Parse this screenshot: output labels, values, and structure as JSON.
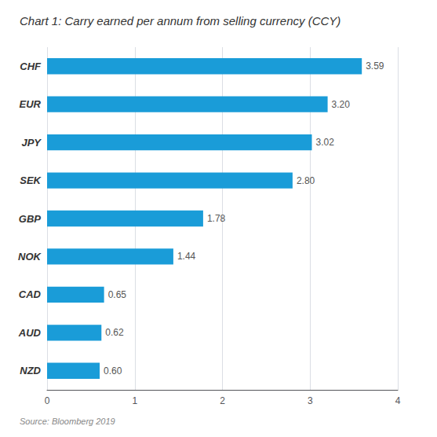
{
  "chart_data": {
    "type": "bar",
    "orientation": "horizontal",
    "title": "Chart 1: Carry earned per annum from selling currency (CCY)",
    "annotations": [
      "Source: Bloomberg 2019"
    ],
    "categories": [
      "NZD",
      "AUD",
      "CAD",
      "NOK",
      "GBP",
      "SEK",
      "JPY",
      "EUR",
      "CHF"
    ],
    "values": [
      0.6,
      0.62,
      0.65,
      1.44,
      1.78,
      2.8,
      3.02,
      3.2,
      3.59
    ],
    "value_labels": [
      "0.60",
      "0.62",
      "0.65",
      "1.44",
      "1.78",
      "2.80",
      "3.02",
      "3.20",
      "3.59"
    ],
    "data_labels": true,
    "color": "#1a9cd8",
    "xlim": [
      0,
      4
    ],
    "xticks": [
      0,
      1,
      2,
      3,
      4
    ],
    "grid": true
  }
}
